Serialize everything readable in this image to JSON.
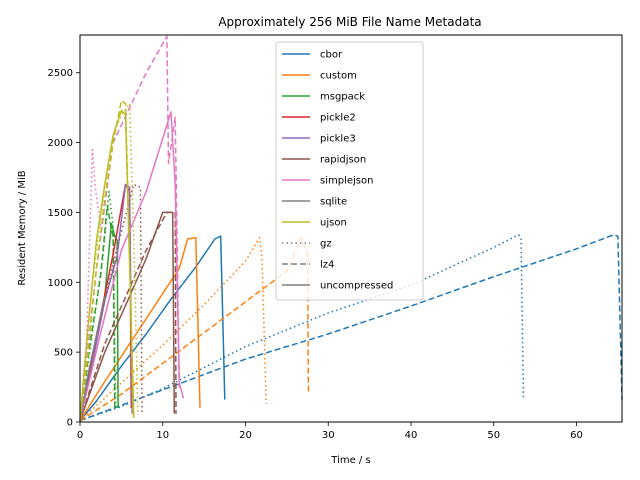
{
  "chart_data": {
    "type": "line",
    "title": "Approximately 256 MiB File Name Metadata",
    "xlabel": "Time / s",
    "ylabel": "Resident Memory / MiB",
    "xlim": [
      0,
      65.5
    ],
    "ylim": [
      0,
      2770
    ],
    "xticks": [
      0,
      10,
      20,
      30,
      40,
      50,
      60
    ],
    "yticks": [
      0,
      500,
      1000,
      1500,
      2000,
      2500
    ],
    "grid": false,
    "legend_position": "top-center",
    "colors": {
      "cbor": "#1f77b4",
      "custom": "#ff7f0e",
      "msgpack": "#2ca02c",
      "pickle2": "#d62728",
      "pickle3": "#9467bd",
      "rapidjson": "#8c564b",
      "simplejson": "#e377c2",
      "sqlite": "#7f7f7f",
      "ujson": "#bcbd22"
    },
    "legend": [
      {
        "label": "cbor",
        "kind": "color",
        "color": "#1f77b4"
      },
      {
        "label": "custom",
        "kind": "color",
        "color": "#ff7f0e"
      },
      {
        "label": "msgpack",
        "kind": "color",
        "color": "#2ca02c"
      },
      {
        "label": "pickle2",
        "kind": "color",
        "color": "#d62728"
      },
      {
        "label": "pickle3",
        "kind": "color",
        "color": "#9467bd"
      },
      {
        "label": "rapidjson",
        "kind": "color",
        "color": "#8c564b"
      },
      {
        "label": "simplejson",
        "kind": "color",
        "color": "#e377c2"
      },
      {
        "label": "sqlite",
        "kind": "color",
        "color": "#7f7f7f"
      },
      {
        "label": "ujson",
        "kind": "color",
        "color": "#bcbd22"
      },
      {
        "label": "gz",
        "kind": "style",
        "style": "dotted"
      },
      {
        "label": "lz4",
        "kind": "style",
        "style": "dashed"
      },
      {
        "label": "uncompressed",
        "kind": "style",
        "style": "solid"
      }
    ],
    "series": [
      {
        "format": "cbor",
        "compression": "uncompressed",
        "points": [
          [
            0,
            10
          ],
          [
            2,
            150
          ],
          [
            5,
            400
          ],
          [
            8,
            630
          ],
          [
            11,
            880
          ],
          [
            14,
            1110
          ],
          [
            16.3,
            1310
          ],
          [
            17,
            1330
          ],
          [
            17.5,
            160
          ]
        ]
      },
      {
        "format": "cbor",
        "compression": "gz",
        "points": [
          [
            0,
            10
          ],
          [
            5,
            110
          ],
          [
            10,
            240
          ],
          [
            20,
            540
          ],
          [
            30,
            780
          ],
          [
            40,
            980
          ],
          [
            50,
            1250
          ],
          [
            53,
            1340
          ],
          [
            53.3,
            1320
          ],
          [
            53.6,
            160
          ]
        ]
      },
      {
        "format": "cbor",
        "compression": "lz4",
        "points": [
          [
            0,
            10
          ],
          [
            10,
            230
          ],
          [
            20,
            450
          ],
          [
            30,
            630
          ],
          [
            40,
            830
          ],
          [
            50,
            1040
          ],
          [
            60,
            1240
          ],
          [
            64.5,
            1340
          ],
          [
            65,
            1330
          ],
          [
            65.5,
            160
          ]
        ]
      },
      {
        "format": "custom",
        "compression": "uncompressed",
        "points": [
          [
            0,
            10
          ],
          [
            3,
            290
          ],
          [
            6,
            560
          ],
          [
            9,
            830
          ],
          [
            12,
            1100
          ],
          [
            13,
            1310
          ],
          [
            14,
            1320
          ],
          [
            14.5,
            100
          ]
        ]
      },
      {
        "format": "custom",
        "compression": "gz",
        "points": [
          [
            0,
            10
          ],
          [
            5,
            280
          ],
          [
            10,
            550
          ],
          [
            15,
            840
          ],
          [
            20,
            1150
          ],
          [
            21.7,
            1320
          ],
          [
            22,
            1170
          ],
          [
            22.5,
            130
          ]
        ]
      },
      {
        "format": "custom",
        "compression": "lz4",
        "points": [
          [
            0,
            10
          ],
          [
            5,
            200
          ],
          [
            10,
            420
          ],
          [
            15,
            640
          ],
          [
            20,
            860
          ],
          [
            25,
            1080
          ],
          [
            26.7,
            1320
          ],
          [
            27.5,
            1200
          ],
          [
            27.6,
            200
          ]
        ]
      },
      {
        "format": "msgpack",
        "compression": "uncompressed",
        "points": [
          [
            0,
            10
          ],
          [
            1.5,
            420
          ],
          [
            3,
            900
          ],
          [
            3.8,
            1420
          ],
          [
            4.2,
            1330
          ],
          [
            4.5,
            1300
          ],
          [
            4.6,
            100
          ]
        ]
      },
      {
        "format": "msgpack",
        "compression": "gz",
        "points": [
          [
            0,
            10
          ],
          [
            1.5,
            640
          ],
          [
            2.8,
            1200
          ],
          [
            3.5,
            1650
          ],
          [
            4,
            1400
          ],
          [
            4.3,
            100
          ]
        ]
      },
      {
        "format": "msgpack",
        "compression": "lz4",
        "points": [
          [
            0,
            10
          ],
          [
            1.2,
            550
          ],
          [
            2.5,
            1050
          ],
          [
            3.3,
            1550
          ],
          [
            3.8,
            1380
          ],
          [
            4,
            1330
          ],
          [
            4.2,
            100
          ]
        ]
      },
      {
        "format": "pickle2",
        "compression": "uncompressed",
        "points": [
          [
            0,
            10
          ],
          [
            2,
            620
          ],
          [
            4,
            1200
          ],
          [
            5.5,
            1700
          ],
          [
            6,
            1650
          ],
          [
            6.2,
            100
          ]
        ]
      },
      {
        "format": "pickle3",
        "compression": "uncompressed",
        "points": [
          [
            0,
            10
          ],
          [
            1.5,
            420
          ],
          [
            3,
            870
          ],
          [
            4.5,
            1190
          ],
          [
            5.5,
            1700
          ],
          [
            6,
            1680
          ],
          [
            6.3,
            60
          ]
        ]
      },
      {
        "format": "rapidjson",
        "compression": "uncompressed",
        "points": [
          [
            0,
            10
          ],
          [
            3,
            500
          ],
          [
            6,
            900
          ],
          [
            8,
            1170
          ],
          [
            10,
            1500
          ],
          [
            11.2,
            1500
          ],
          [
            11.4,
            60
          ]
        ]
      },
      {
        "format": "rapidjson",
        "compression": "gz",
        "points": [
          [
            0,
            10
          ],
          [
            2,
            620
          ],
          [
            4.5,
            1250
          ],
          [
            6.5,
            1700
          ],
          [
            7.3,
            1680
          ],
          [
            7.5,
            50
          ]
        ]
      },
      {
        "format": "rapidjson",
        "compression": "lz4",
        "points": [
          [
            0,
            10
          ],
          [
            3,
            560
          ],
          [
            6,
            960
          ],
          [
            8,
            1230
          ],
          [
            10.5,
            1500
          ],
          [
            11.5,
            1500
          ],
          [
            11.6,
            60
          ]
        ]
      },
      {
        "format": "simplejson",
        "compression": "uncompressed",
        "points": [
          [
            0,
            10
          ],
          [
            2.5,
            640
          ],
          [
            5,
            1230
          ],
          [
            8,
            1650
          ],
          [
            11,
            2220
          ],
          [
            11.5,
            1700
          ],
          [
            12,
            280
          ],
          [
            12.5,
            170
          ]
        ]
      },
      {
        "format": "simplejson",
        "compression": "gz",
        "points": [
          [
            0,
            10
          ],
          [
            0.8,
            600
          ],
          [
            1.5,
            1950
          ],
          [
            1.8,
            1700
          ],
          [
            2.5,
            1400
          ]
        ]
      },
      {
        "format": "simplejson",
        "compression": "lz4",
        "points": [
          [
            0,
            10
          ],
          [
            2,
            1100
          ],
          [
            4,
            2000
          ],
          [
            8,
            2500
          ],
          [
            10.5,
            2760
          ],
          [
            10.7,
            1850
          ],
          [
            11.5,
            2180
          ],
          [
            12,
            240
          ]
        ]
      },
      {
        "format": "sqlite",
        "compression": "uncompressed",
        "points": [
          [
            0,
            10
          ],
          [
            1,
            350
          ],
          [
            2,
            620
          ],
          [
            3,
            900
          ]
        ]
      },
      {
        "format": "ujson",
        "compression": "uncompressed",
        "points": [
          [
            0,
            10
          ],
          [
            1,
            700
          ],
          [
            2,
            1300
          ],
          [
            3,
            1700
          ],
          [
            4,
            2050
          ],
          [
            5,
            2230
          ],
          [
            5.5,
            2200
          ],
          [
            6.5,
            30
          ]
        ]
      },
      {
        "format": "ujson",
        "compression": "gz",
        "points": [
          [
            0,
            10
          ],
          [
            1.5,
            1000
          ],
          [
            3,
            1700
          ],
          [
            4,
            2050
          ],
          [
            5,
            2200
          ],
          [
            6,
            2280
          ],
          [
            6.5,
            1300
          ],
          [
            7,
            50
          ]
        ]
      },
      {
        "format": "ujson",
        "compression": "lz4",
        "points": [
          [
            0,
            10
          ],
          [
            1,
            500
          ],
          [
            2,
            1100
          ],
          [
            3,
            1600
          ],
          [
            4,
            2000
          ],
          [
            5,
            2300
          ],
          [
            5.5,
            2280
          ],
          [
            6,
            1200
          ],
          [
            6.4,
            50
          ]
        ]
      }
    ]
  }
}
